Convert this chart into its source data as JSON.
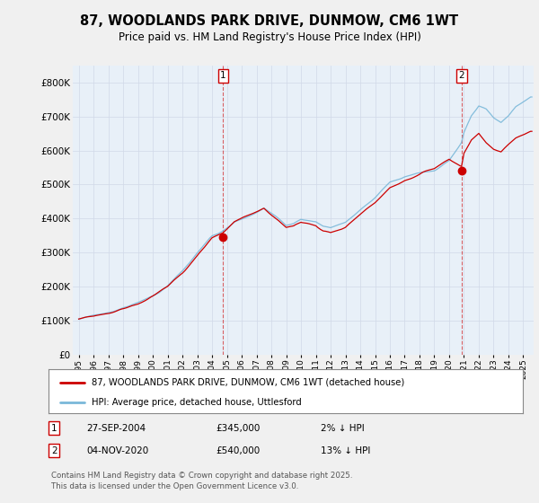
{
  "title": "87, WOODLANDS PARK DRIVE, DUNMOW, CM6 1WT",
  "subtitle": "Price paid vs. HM Land Registry's House Price Index (HPI)",
  "ylim": [
    0,
    850000
  ],
  "yticks": [
    0,
    100000,
    200000,
    300000,
    400000,
    500000,
    600000,
    700000,
    800000
  ],
  "ytick_labels": [
    "£0",
    "£100K",
    "£200K",
    "£300K",
    "£400K",
    "£500K",
    "£600K",
    "£700K",
    "£800K"
  ],
  "sale1_date": 2004.75,
  "sale1_price": 345000,
  "sale1_label": "1",
  "sale2_date": 2020.83,
  "sale2_price": 540000,
  "sale2_label": "2",
  "hpi_line_color": "#7ab8d9",
  "price_line_color": "#cc0000",
  "bg_color": "#f0f0f0",
  "plot_bg_color": "#e8f0f8",
  "legend1": "87, WOODLANDS PARK DRIVE, DUNMOW, CM6 1WT (detached house)",
  "legend2": "HPI: Average price, detached house, Uttlesford",
  "footer": "Contains HM Land Registry data © Crown copyright and database right 2025.\nThis data is licensed under the Open Government Licence v3.0.",
  "table_row1": [
    "1",
    "27-SEP-2004",
    "£345,000",
    "2% ↓ HPI"
  ],
  "table_row2": [
    "2",
    "04-NOV-2020",
    "£540,000",
    "13% ↓ HPI"
  ]
}
